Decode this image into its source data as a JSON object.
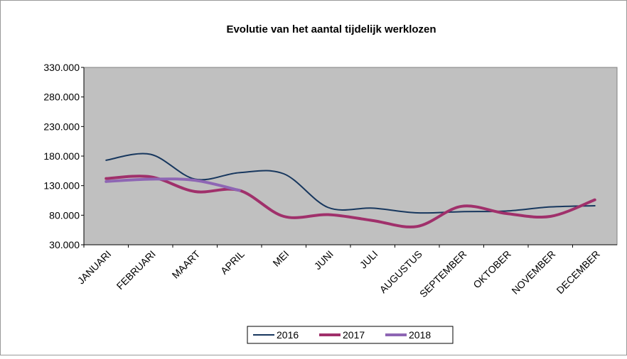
{
  "chart_data": {
    "type": "line",
    "title": "Evolutie van het aantal tijdelijk werklozen",
    "categories": [
      "JANUARI",
      "FEBRUARI",
      "MAART",
      "APRIL",
      "MEI",
      "JUNI",
      "JULI",
      "AUGUSTUS",
      "SEPTEMBER",
      "OKTOBER",
      "NOVEMBER",
      "DECEMBER"
    ],
    "series": [
      {
        "name": "2016",
        "color": "#17375e",
        "values": [
          173000,
          183000,
          141000,
          152000,
          150000,
          93000,
          92000,
          84000,
          86000,
          87000,
          94000,
          96000
        ]
      },
      {
        "name": "2017",
        "color": "#a0306b",
        "values": [
          142000,
          145000,
          120000,
          122000,
          78000,
          81000,
          71000,
          61000,
          95000,
          83000,
          78000,
          106000
        ]
      },
      {
        "name": "2018",
        "color": "#8e66b4",
        "values": [
          137000,
          141000,
          139000,
          122000,
          null,
          null,
          null,
          null,
          null,
          null,
          null,
          null
        ]
      }
    ],
    "ylim": [
      30000,
      330000
    ],
    "yticks": [
      {
        "value": 30000,
        "label": "30.000"
      },
      {
        "value": 80000,
        "label": "80.000"
      },
      {
        "value": 130000,
        "label": "130.000"
      },
      {
        "value": 180000,
        "label": "180.000"
      },
      {
        "value": 230000,
        "label": "230.000"
      },
      {
        "value": 280000,
        "label": "280.000"
      },
      {
        "value": 330000,
        "label": "330.000"
      }
    ],
    "grid": false,
    "smooth": true,
    "legend": "bottom",
    "plot_background": "#c0c0c0"
  }
}
